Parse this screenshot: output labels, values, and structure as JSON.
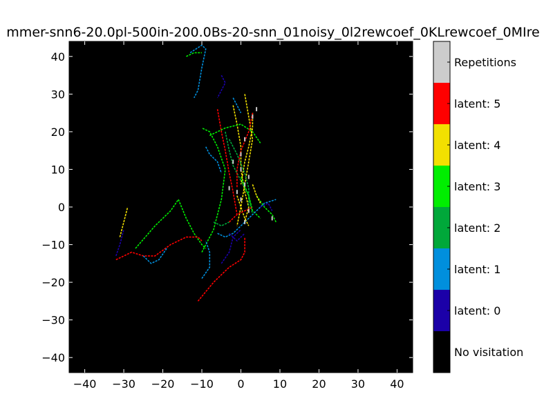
{
  "chart_data": {
    "type": "heatmap",
    "title": "mmer-snn6-20.0pl-500in-200.0Bs-20-snn_01noisy_0l2rewcoef_0KLrewcoef_0MIre",
    "xlim": [
      -44,
      44
    ],
    "ylim": [
      -44,
      44
    ],
    "x_ticks": [
      -40,
      -30,
      -20,
      -10,
      0,
      10,
      20,
      30,
      40
    ],
    "y_ticks": [
      40,
      30,
      20,
      10,
      0,
      -10,
      -20,
      -30,
      -40
    ],
    "x_tick_labels": [
      "−40",
      "−30",
      "−20",
      "−10",
      "0",
      "10",
      "20",
      "30",
      "40"
    ],
    "y_tick_labels": [
      "40",
      "30",
      "20",
      "10",
      "0",
      "−10",
      "−20",
      "−30",
      "−40"
    ],
    "grid": false,
    "background_color": "#000000",
    "colorbar": [
      {
        "label": "Repetitions",
        "color": "#cccccc"
      },
      {
        "label": "latent: 5",
        "color": "#ff0000"
      },
      {
        "label": "latent: 4",
        "color": "#f2e000"
      },
      {
        "label": "latent: 3",
        "color": "#00ee00"
      },
      {
        "label": "latent: 2",
        "color": "#00a83a"
      },
      {
        "label": "latent: 1",
        "color": "#008fdd"
      },
      {
        "label": "latent: 0",
        "color": "#1b00a8"
      },
      {
        "label": "No visitation",
        "color": "#000000"
      }
    ],
    "series": [
      {
        "latent": 3,
        "points": [
          [
            -27,
            -11
          ],
          [
            -22,
            -5
          ],
          [
            -18,
            -1
          ],
          [
            -16,
            2
          ],
          [
            -14,
            -3
          ],
          [
            -12,
            -7
          ],
          [
            -10,
            -10
          ],
          [
            -9,
            -11
          ]
        ]
      },
      {
        "latent": 5,
        "points": [
          [
            -32,
            -14
          ],
          [
            -28,
            -12
          ],
          [
            -25,
            -13
          ],
          [
            -22,
            -13
          ],
          [
            -18,
            -10
          ],
          [
            -14,
            -8
          ],
          [
            -11,
            -8
          ],
          [
            -10,
            -9
          ]
        ]
      },
      {
        "latent": 1,
        "points": [
          [
            -25,
            -13
          ],
          [
            -23,
            -15
          ],
          [
            -21,
            -14
          ],
          [
            -19,
            -11
          ]
        ]
      },
      {
        "latent": 0,
        "points": [
          [
            -32,
            -13
          ],
          [
            -31,
            -10
          ],
          [
            -30,
            -6
          ]
        ]
      },
      {
        "latent": 4,
        "points": [
          [
            -31,
            -8
          ],
          [
            -30,
            -4
          ],
          [
            -29,
            0
          ]
        ]
      },
      {
        "latent": 3,
        "points": [
          [
            -10,
            -12
          ],
          [
            -7,
            -6
          ],
          [
            -5,
            2
          ],
          [
            -4,
            10
          ],
          [
            -6,
            16
          ],
          [
            -8,
            20
          ],
          [
            -10,
            21
          ]
        ]
      },
      {
        "latent": 5,
        "points": [
          [
            -11,
            -25
          ],
          [
            -7,
            -20
          ],
          [
            -3,
            -16
          ],
          [
            0,
            -14
          ],
          [
            1,
            -12
          ],
          [
            1,
            -8
          ]
        ]
      },
      {
        "latent": 1,
        "points": [
          [
            -10,
            -19
          ],
          [
            -8,
            -16
          ],
          [
            -8,
            -12
          ],
          [
            -9,
            -9
          ]
        ]
      },
      {
        "latent": 0,
        "points": [
          [
            -5,
            -15
          ],
          [
            -3,
            -12
          ],
          [
            -2,
            -8
          ],
          [
            0,
            -6
          ]
        ]
      },
      {
        "latent": 1,
        "points": [
          [
            -13,
            41
          ],
          [
            -10,
            43
          ],
          [
            -9,
            42
          ],
          [
            -10,
            37
          ],
          [
            -11,
            31
          ],
          [
            -12,
            29
          ]
        ]
      },
      {
        "latent": 3,
        "points": [
          [
            -14,
            40
          ],
          [
            -12,
            41
          ],
          [
            -10,
            41
          ]
        ]
      },
      {
        "latent": 0,
        "points": [
          [
            -5,
            35
          ],
          [
            -4,
            33
          ],
          [
            -5,
            31
          ],
          [
            -6,
            29
          ]
        ]
      },
      {
        "latent": 4,
        "points": [
          [
            -2,
            27
          ],
          [
            -1,
            22
          ],
          [
            0,
            16
          ],
          [
            0,
            10
          ],
          [
            1,
            4
          ],
          [
            2,
            0
          ],
          [
            1,
            -4
          ]
        ]
      },
      {
        "latent": 2,
        "points": [
          [
            -4,
            20
          ],
          [
            -3,
            15
          ],
          [
            -2,
            11
          ],
          [
            0,
            7
          ],
          [
            2,
            3
          ],
          [
            3,
            -2
          ]
        ]
      },
      {
        "latent": 4,
        "points": [
          [
            1,
            30
          ],
          [
            2,
            24
          ],
          [
            3,
            18
          ],
          [
            2,
            12
          ],
          [
            1,
            6
          ],
          [
            0,
            0
          ],
          [
            -1,
            -5
          ]
        ]
      },
      {
        "latent": 5,
        "points": [
          [
            -6,
            26
          ],
          [
            -5,
            20
          ],
          [
            -4,
            15
          ],
          [
            -3,
            9
          ],
          [
            -2,
            4
          ],
          [
            -1,
            -2
          ]
        ]
      },
      {
        "latent": 3,
        "points": [
          [
            -8,
            19
          ],
          [
            -4,
            21
          ],
          [
            0,
            22
          ],
          [
            3,
            20
          ],
          [
            5,
            17
          ]
        ]
      },
      {
        "latent": 4,
        "points": [
          [
            3,
            25
          ],
          [
            3,
            21
          ],
          [
            2,
            16
          ],
          [
            1,
            12
          ],
          [
            0,
            6
          ]
        ]
      },
      {
        "latent": 1,
        "points": [
          [
            -9,
            16
          ],
          [
            -8,
            14
          ],
          [
            -6,
            12
          ],
          [
            -5,
            9
          ]
        ]
      },
      {
        "latent": 2,
        "points": [
          [
            -3,
            18
          ],
          [
            -1,
            14
          ],
          [
            1,
            9
          ],
          [
            2,
            5
          ],
          [
            2,
            0
          ]
        ]
      },
      {
        "latent": 5,
        "points": [
          [
            3,
            25
          ],
          [
            2,
            20
          ],
          [
            0,
            15
          ],
          [
            -1,
            10
          ],
          [
            -1,
            5
          ]
        ]
      },
      {
        "latent": 3,
        "points": [
          [
            0,
            8
          ],
          [
            2,
            3
          ],
          [
            3,
            -1
          ],
          [
            5,
            -3
          ]
        ]
      },
      {
        "latent": 1,
        "points": [
          [
            -6,
            -7
          ],
          [
            -4,
            -8
          ],
          [
            -2,
            -7
          ],
          [
            0,
            -5
          ],
          [
            2,
            -3
          ],
          [
            4,
            -1
          ],
          [
            6,
            1
          ],
          [
            9,
            2
          ]
        ]
      },
      {
        "latent": 0,
        "points": [
          [
            -3,
            -7
          ],
          [
            -1,
            -9
          ],
          [
            1,
            -7
          ]
        ]
      },
      {
        "latent": 3,
        "points": [
          [
            4,
            3
          ],
          [
            6,
            0
          ],
          [
            8,
            -2
          ],
          [
            9,
            -4
          ]
        ]
      },
      {
        "latent": 4,
        "points": [
          [
            -1,
            3
          ],
          [
            0,
            0
          ],
          [
            1,
            -3
          ],
          [
            2,
            -5
          ]
        ]
      },
      {
        "latent": 5,
        "points": [
          [
            -3,
            -4
          ],
          [
            -1,
            -2
          ],
          [
            1,
            -1
          ],
          [
            3,
            0
          ]
        ]
      },
      {
        "latent": 2,
        "points": [
          [
            -7,
            -4
          ],
          [
            -5,
            -5
          ],
          [
            -3,
            -4
          ]
        ]
      },
      {
        "latent": 0,
        "points": [
          [
            5,
            0
          ],
          [
            7,
            1
          ],
          [
            8,
            -1
          ]
        ]
      },
      {
        "latent": 4,
        "points": [
          [
            3,
            6
          ],
          [
            4,
            3
          ],
          [
            5,
            1
          ]
        ]
      },
      {
        "latent": 1,
        "points": [
          [
            -2,
            29
          ],
          [
            -1,
            27
          ],
          [
            0,
            25
          ]
        ]
      }
    ],
    "repetitions": [
      [
        0,
        10
      ],
      [
        1,
        6
      ],
      [
        0,
        2
      ],
      [
        2,
        -1
      ],
      [
        -1,
        4
      ],
      [
        3,
        24
      ],
      [
        4,
        26
      ],
      [
        1,
        18
      ],
      [
        -2,
        12
      ],
      [
        2,
        8
      ],
      [
        0,
        14
      ],
      [
        -3,
        5
      ],
      [
        8,
        -3
      ],
      [
        1,
        -4
      ]
    ]
  }
}
